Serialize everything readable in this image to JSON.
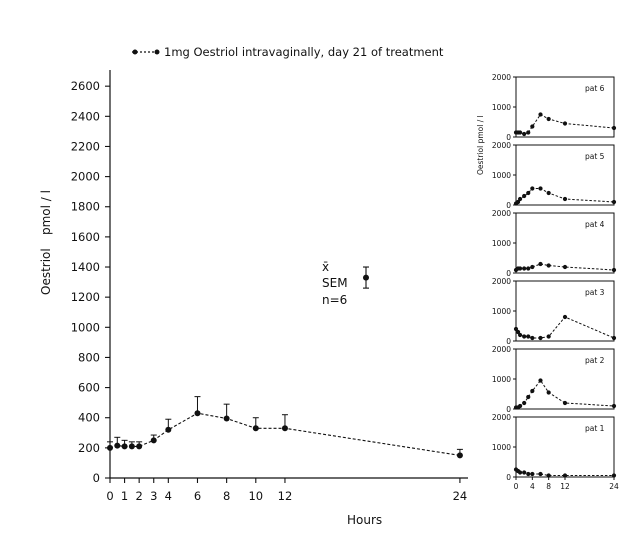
{
  "chart_data": [
    {
      "type": "line",
      "title": "1mg Oestriol intravaginally, day 21 of treatment",
      "xlabel": "Hours",
      "ylabel_parts": [
        "Oestriol",
        "pmol / l"
      ],
      "xlim": [
        0,
        24
      ],
      "ylim": [
        0,
        2600
      ],
      "x_ticks": [
        0,
        1,
        2,
        3,
        4,
        6,
        8,
        10,
        12,
        24
      ],
      "y_ticks": [
        0,
        200,
        400,
        600,
        800,
        1000,
        1200,
        1400,
        1600,
        1800,
        2000,
        2200,
        2400,
        2600
      ],
      "series": [
        {
          "name": "mean",
          "x": [
            0,
            0.5,
            1,
            1.5,
            2,
            3,
            4,
            6,
            8,
            10,
            12,
            24
          ],
          "y": [
            200,
            215,
            210,
            210,
            210,
            250,
            320,
            430,
            395,
            330,
            330,
            150
          ],
          "sem": [
            40,
            55,
            40,
            30,
            30,
            35,
            70,
            110,
            95,
            70,
            90,
            40
          ]
        }
      ],
      "legend": {
        "symbol_label": "x̄",
        "sem_label": "SEM",
        "n_label": "n=6",
        "sample_value": 1330,
        "sample_sem": 70
      }
    },
    {
      "type": "line",
      "subplots": [
        {
          "label": "pat 6",
          "x": [
            0,
            0.5,
            1,
            2,
            3,
            4,
            6,
            8,
            12,
            24
          ],
          "y": [
            150,
            150,
            150,
            100,
            150,
            350,
            750,
            600,
            450,
            300
          ]
        },
        {
          "label": "pat 5",
          "x": [
            0,
            0.5,
            1,
            2,
            3,
            4,
            6,
            8,
            12,
            24
          ],
          "y": [
            50,
            100,
            200,
            300,
            400,
            550,
            550,
            400,
            200,
            100
          ]
        },
        {
          "label": "pat 4",
          "x": [
            0,
            0.5,
            1,
            2,
            3,
            4,
            6,
            8,
            12,
            24
          ],
          "y": [
            100,
            150,
            150,
            150,
            150,
            200,
            300,
            250,
            200,
            100
          ]
        },
        {
          "label": "pat 3",
          "x": [
            0,
            0.5,
            1,
            2,
            3,
            4,
            6,
            8,
            12,
            24
          ],
          "y": [
            400,
            300,
            200,
            150,
            150,
            100,
            100,
            150,
            800,
            100
          ]
        },
        {
          "label": "pat 2",
          "x": [
            0,
            0.5,
            1,
            2,
            3,
            4,
            6,
            8,
            12,
            24
          ],
          "y": [
            50,
            50,
            100,
            200,
            400,
            600,
            950,
            550,
            200,
            100
          ]
        },
        {
          "label": "pat 1",
          "x": [
            0,
            0.5,
            1,
            2,
            3,
            4,
            6,
            8,
            12,
            24
          ],
          "y": [
            250,
            200,
            150,
            150,
            100,
            100,
            100,
            50,
            50,
            50
          ]
        }
      ],
      "ylim": [
        0,
        2000
      ],
      "y_ticks": [
        0,
        1000,
        2000
      ],
      "x_ticks": [
        0,
        4,
        8,
        12,
        24
      ],
      "ylabel": "Oestriol   pmol / l"
    }
  ]
}
